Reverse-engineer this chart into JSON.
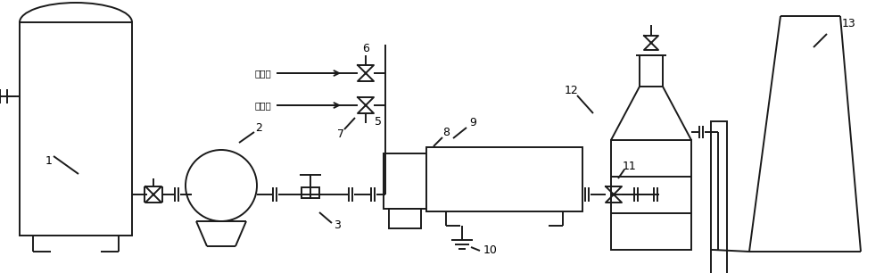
{
  "bg_color": "#ffffff",
  "line_color": "#1a1a1a",
  "line_width": 1.4,
  "fig_width": 10.0,
  "fig_height": 3.06,
  "dpi": 100
}
